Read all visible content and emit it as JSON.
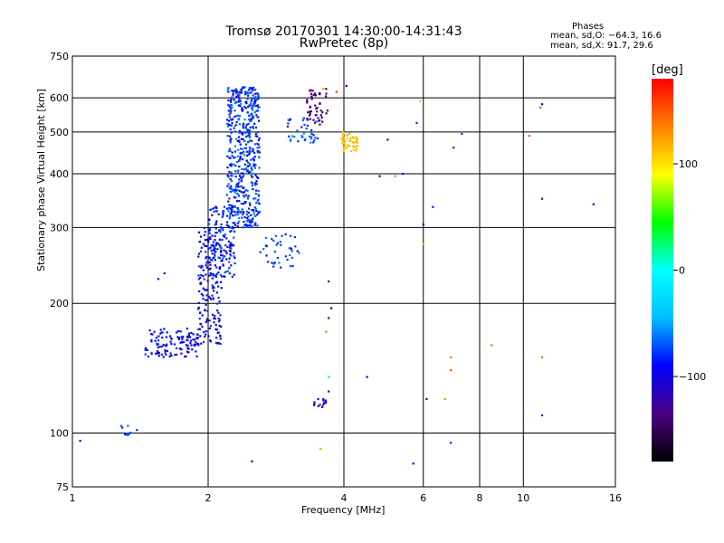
{
  "header": {
    "title": "Tromsø 20170301 14:30:00-14:31:43",
    "subtitle": "RwPretec (8p)",
    "phases_title": "Phases",
    "phases_o": "mean, sd,O: −64.3, 16.6",
    "phases_x": "mean, sd,X:  91.7, 29.6"
  },
  "colorbar": {
    "label": "[deg]",
    "ticks": [
      "100",
      "0",
      "−100"
    ],
    "tick_values": [
      100,
      0,
      -100
    ],
    "range": [
      -180,
      180
    ],
    "palette": [
      "#000000",
      "#4b0082",
      "#0000ff",
      "#00bfff",
      "#00ffff",
      "#00ff00",
      "#ffff00",
      "#ff8000",
      "#ff0000"
    ]
  },
  "chart_data": {
    "type": "scatter",
    "xlabel": "Frequency [MHz]",
    "ylabel": "Stationary phase Virtual Height [km]",
    "xscale": "log",
    "yscale": "log",
    "xlim": [
      1,
      16
    ],
    "ylim": [
      75,
      750
    ],
    "xticks": [
      1,
      2,
      4,
      6,
      8,
      10,
      16
    ],
    "xtick_labels": [
      "1",
      "2",
      "4",
      "6",
      "8",
      "10",
      "16"
    ],
    "yticks": [
      75,
      100,
      200,
      300,
      400,
      500,
      600,
      750
    ],
    "ytick_labels": [
      "75",
      "100",
      "200",
      "300",
      "400",
      "500",
      "600",
      "750"
    ],
    "grid": true,
    "color_value": "phase [deg]",
    "clusters": [
      {
        "name": "",
        "x_range": [
          1.45,
          1.9
        ],
        "y_range": [
          150,
          175
        ],
        "n": 120,
        "phase": -95,
        "spread": 20
      },
      {
        "name": "",
        "x_range": [
          1.9,
          2.15
        ],
        "y_range": [
          160,
          300
        ],
        "n": 180,
        "phase": -95,
        "spread": 20
      },
      {
        "name": "",
        "x_range": [
          2.0,
          2.3
        ],
        "y_range": [
          230,
          340
        ],
        "n": 140,
        "phase": -85,
        "spread": 20
      },
      {
        "name": "",
        "x_range": [
          2.2,
          2.6
        ],
        "y_range": [
          300,
          640
        ],
        "n": 520,
        "phase": -78,
        "spread": 20
      },
      {
        "name": "",
        "x_range": [
          2.6,
          3.2
        ],
        "y_range": [
          240,
          290
        ],
        "n": 40,
        "phase": -75,
        "spread": 15
      },
      {
        "name": "",
        "x_range": [
          3.0,
          3.5
        ],
        "y_range": [
          470,
          540
        ],
        "n": 40,
        "phase": -70,
        "spread": 15
      },
      {
        "name": "",
        "x_range": [
          3.3,
          3.7
        ],
        "y_range": [
          520,
          630
        ],
        "n": 50,
        "phase": -140,
        "spread": 10
      },
      {
        "name": "",
        "x_range": [
          3.95,
          4.3
        ],
        "y_range": [
          450,
          500
        ],
        "n": 50,
        "phase": 110,
        "spread": 8
      },
      {
        "name": "",
        "x_range": [
          3.4,
          3.65
        ],
        "y_range": [
          115,
          120
        ],
        "n": 15,
        "phase": -100,
        "spread": 15
      },
      {
        "name": "",
        "x_range": [
          1.25,
          1.4
        ],
        "y_range": [
          98,
          104
        ],
        "n": 10,
        "phase": -75,
        "spread": 10
      }
    ],
    "isolated_points": [
      {
        "x": 1.04,
        "y": 96,
        "phase": -100
      },
      {
        "x": 1.6,
        "y": 235,
        "phase": -115
      },
      {
        "x": 1.55,
        "y": 228,
        "phase": -100
      },
      {
        "x": 2.5,
        "y": 86,
        "phase": -120
      },
      {
        "x": 3.55,
        "y": 92,
        "phase": 120
      },
      {
        "x": 3.7,
        "y": 225,
        "phase": -120
      },
      {
        "x": 3.7,
        "y": 185,
        "phase": -130
      },
      {
        "x": 3.65,
        "y": 172,
        "phase": 140
      },
      {
        "x": 3.7,
        "y": 135,
        "phase": 20
      },
      {
        "x": 3.7,
        "y": 125,
        "phase": -140
      },
      {
        "x": 3.75,
        "y": 195,
        "phase": -160
      },
      {
        "x": 4.05,
        "y": 640,
        "phase": -110
      },
      {
        "x": 4.5,
        "y": 135,
        "phase": -100
      },
      {
        "x": 4.8,
        "y": 395,
        "phase": -110
      },
      {
        "x": 5.0,
        "y": 480,
        "phase": -100
      },
      {
        "x": 5.2,
        "y": 395,
        "phase": 130
      },
      {
        "x": 5.4,
        "y": 400,
        "phase": -105
      },
      {
        "x": 5.8,
        "y": 525,
        "phase": -80
      },
      {
        "x": 5.9,
        "y": 590,
        "phase": 110
      },
      {
        "x": 6.0,
        "y": 275,
        "phase": 120
      },
      {
        "x": 6.1,
        "y": 120,
        "phase": -120
      },
      {
        "x": 6.0,
        "y": 305,
        "phase": -100
      },
      {
        "x": 5.7,
        "y": 85,
        "phase": -100
      },
      {
        "x": 6.3,
        "y": 335,
        "phase": -85
      },
      {
        "x": 6.9,
        "y": 150,
        "phase": 140
      },
      {
        "x": 6.9,
        "y": 140,
        "phase": 150
      },
      {
        "x": 6.7,
        "y": 120,
        "phase": 130
      },
      {
        "x": 6.9,
        "y": 95,
        "phase": -80
      },
      {
        "x": 7.0,
        "y": 460,
        "phase": -80
      },
      {
        "x": 7.3,
        "y": 495,
        "phase": -75
      },
      {
        "x": 8.5,
        "y": 160,
        "phase": 140
      },
      {
        "x": 10.3,
        "y": 490,
        "phase": 150
      },
      {
        "x": 10.9,
        "y": 570,
        "phase": 150
      },
      {
        "x": 11.0,
        "y": 580,
        "phase": -90
      },
      {
        "x": 11.0,
        "y": 350,
        "phase": -130
      },
      {
        "x": 11.0,
        "y": 150,
        "phase": 140
      },
      {
        "x": 11.0,
        "y": 110,
        "phase": -80
      },
      {
        "x": 14.3,
        "y": 340,
        "phase": -110
      },
      {
        "x": 3.6,
        "y": 630,
        "phase": 130
      },
      {
        "x": 3.85,
        "y": 620,
        "phase": 160
      },
      {
        "x": 3.35,
        "y": 625,
        "phase": 150
      }
    ]
  }
}
